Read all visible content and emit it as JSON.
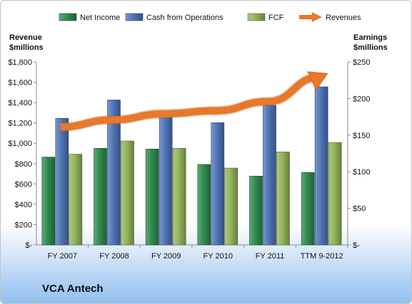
{
  "company": "VCA Antech",
  "chart_data": {
    "type": "bar",
    "categories": [
      "FY 2007",
      "FY 2008",
      "FY 2009",
      "FY 2010",
      "FY 2011",
      "TTM 9-2012"
    ],
    "series": [
      {
        "name": "Net Income",
        "axis": "right",
        "unit": "$millions",
        "color": "#2e8b4e",
        "values": [
          120,
          132,
          131,
          110,
          94,
          99
        ]
      },
      {
        "name": "Cash from Operations",
        "axis": "right",
        "unit": "$millions",
        "color": "#4f74b8",
        "values": [
          173,
          198,
          179,
          167,
          191,
          216
        ]
      },
      {
        "name": "FCF",
        "axis": "right",
        "unit": "$millions",
        "color": "#93b55a",
        "values": [
          124,
          142,
          132,
          105,
          127,
          140
        ]
      },
      {
        "name": "Revenues",
        "axis": "left",
        "unit": "$millions",
        "type": "arrow-line",
        "color": "#e8782a",
        "values": [
          1160,
          1230,
          1290,
          1320,
          1410,
          1650
        ]
      }
    ],
    "left_axis": {
      "label": "Revenue $millions",
      "min": 0,
      "max": 1800,
      "step": 200,
      "ticks": [
        "$-",
        "$200",
        "$400",
        "$600",
        "$800",
        "$1,000",
        "$1,200",
        "$1,400",
        "$1,600",
        "$1,800"
      ]
    },
    "right_axis": {
      "label": "Earnings $millions",
      "min": 0,
      "max": 250,
      "step": 50,
      "ticks": [
        "$-",
        "$50",
        "$100",
        "$150",
        "$200",
        "$250"
      ]
    },
    "legend_position": "top",
    "grid": false
  }
}
